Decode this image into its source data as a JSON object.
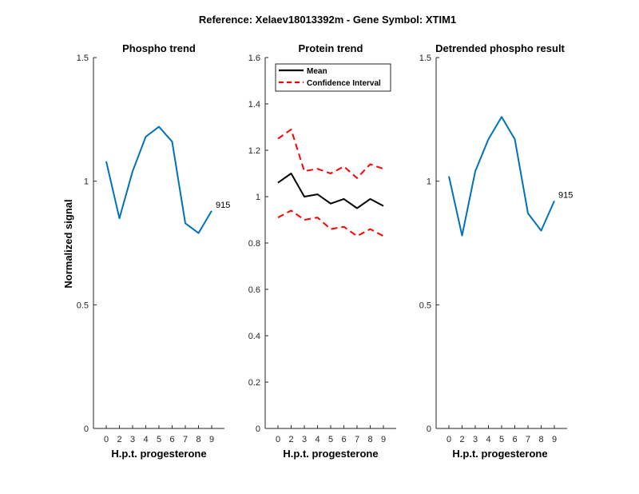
{
  "figure": {
    "suptitle": "Reference:  Xelaev18013392m - Gene Symbol:  XTIM1",
    "ylabel": "Normalized signal"
  },
  "chart_data": [
    {
      "type": "line",
      "title": "Phospho trend",
      "xlabel": "H.p.t. progesterone",
      "ylabel": "Normalized signal",
      "x": [
        0,
        2,
        3,
        4,
        5,
        6,
        7,
        8,
        9
      ],
      "xticks": [
        "0",
        "2",
        "3",
        "4",
        "5",
        "6",
        "7",
        "8",
        "9"
      ],
      "ylim": [
        0,
        1.5
      ],
      "yticks": [
        "0",
        "0.5",
        "1",
        "1.5"
      ],
      "series": [
        {
          "values": [
            1.08,
            0.85,
            1.04,
            1.18,
            1.22,
            1.16,
            0.83,
            0.79,
            0.88
          ],
          "color": "#0072BD"
        }
      ],
      "annotation": "915"
    },
    {
      "type": "line",
      "title": "Protein trend",
      "xlabel": "H.p.t. progesterone",
      "x": [
        0,
        2,
        3,
        4,
        5,
        6,
        7,
        8,
        9
      ],
      "xticks": [
        "0",
        "2",
        "3",
        "4",
        "5",
        "6",
        "7",
        "8",
        "9"
      ],
      "ylim": [
        0,
        1.6
      ],
      "yticks": [
        "0",
        "0.2",
        "0.4",
        "0.6",
        "0.8",
        "1",
        "1.2",
        "1.4",
        "1.6"
      ],
      "legend_position": "top-left",
      "series": [
        {
          "name": "Mean",
          "values": [
            1.06,
            1.1,
            1.0,
            1.01,
            0.97,
            0.99,
            0.95,
            0.99,
            0.96
          ],
          "color": "#000000",
          "style": "solid"
        },
        {
          "name": "Confidence Interval",
          "values": [
            1.25,
            1.29,
            1.11,
            1.12,
            1.1,
            1.13,
            1.08,
            1.14,
            1.12
          ],
          "color": "#FF0000",
          "style": "dashed"
        },
        {
          "values": [
            0.91,
            0.94,
            0.9,
            0.91,
            0.86,
            0.87,
            0.83,
            0.86,
            0.83
          ],
          "color": "#FF0000",
          "style": "dashed"
        }
      ]
    },
    {
      "type": "line",
      "title": "Detrended phospho result",
      "xlabel": "H.p.t. progesterone",
      "x": [
        0,
        2,
        3,
        4,
        5,
        6,
        7,
        8,
        9
      ],
      "xticks": [
        "0",
        "2",
        "3",
        "4",
        "5",
        "6",
        "7",
        "8",
        "9"
      ],
      "ylim": [
        0,
        1.5
      ],
      "yticks": [
        "0",
        "0.5",
        "1",
        "1.5"
      ],
      "series": [
        {
          "values": [
            1.02,
            0.78,
            1.04,
            1.17,
            1.26,
            1.17,
            0.87,
            0.8,
            0.92
          ],
          "color": "#0072BD"
        }
      ],
      "annotation": "915"
    }
  ]
}
